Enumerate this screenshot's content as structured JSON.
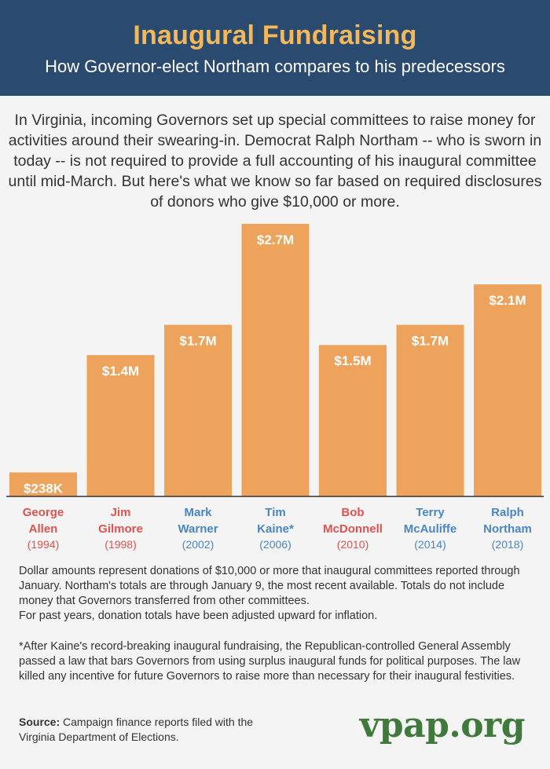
{
  "header": {
    "title": "Inaugural Fundraising",
    "subtitle": "How Governor-elect Northam compares to his predecessors"
  },
  "intro": "In Virginia, incoming Governors set up special committees to raise money for activities around their swearing-in. Democrat Ralph Northam -- who is sworn in today -- is not required to provide a full accounting of his inaugural committee until mid-March. But here's what we know so far based on required disclosures of donors who give $10,000 or more.",
  "chart_data": {
    "type": "bar",
    "title": "Inaugural Fundraising",
    "ylabel": "",
    "xlabel": "",
    "ylim": [
      0,
      2.7
    ],
    "categories": [
      {
        "name": [
          "George",
          "Allen"
        ],
        "year": "(1994)",
        "party": "R"
      },
      {
        "name": [
          "Jim",
          "Gilmore"
        ],
        "year": "(1998)",
        "party": "R"
      },
      {
        "name": [
          "Mark",
          "Warner"
        ],
        "year": "(2002)",
        "party": "D"
      },
      {
        "name": [
          "Tim",
          "Kaine*"
        ],
        "year": "(2006)",
        "party": "D"
      },
      {
        "name": [
          "Bob",
          "McDonnell"
        ],
        "year": "(2010)",
        "party": "R"
      },
      {
        "name": [
          "Terry",
          "McAuliffe"
        ],
        "year": "(2014)",
        "party": "D"
      },
      {
        "name": [
          "Ralph",
          "Northam"
        ],
        "year": "(2018)",
        "party": "D"
      }
    ],
    "values": [
      0.238,
      1.4,
      1.7,
      2.7,
      1.5,
      1.7,
      2.1
    ],
    "value_labels": [
      "$238K",
      "$1.4M",
      "$1.7M",
      "$2.7M",
      "$1.5M",
      "$1.7M",
      "$2.1M"
    ],
    "colors": {
      "bar": "#eda35b",
      "republican": "#e0524f",
      "democrat": "#4a86c5"
    }
  },
  "notes": [
    "Dollar amounts represent donations of $10,000 or more that inaugural committees reported through January. Northam's totals are through January 9, the most recent available. Totals do not include money that Governors transferred from other committees.",
    "For past years, donation totals have been adjusted upward for inflation."
  ],
  "footnote": "*After Kaine's record-breaking inaugural fundraising, the Republican-controlled General Assembly passed a law that bars Governors from using surplus inaugural funds for political purposes. The law killed any incentive for future Governors to raise more than necessary for their inaugural festivities.",
  "source": {
    "label": "Source:",
    "text": "Campaign finance reports filed with the Virginia Department of Elections."
  },
  "logo": "vpap.org"
}
